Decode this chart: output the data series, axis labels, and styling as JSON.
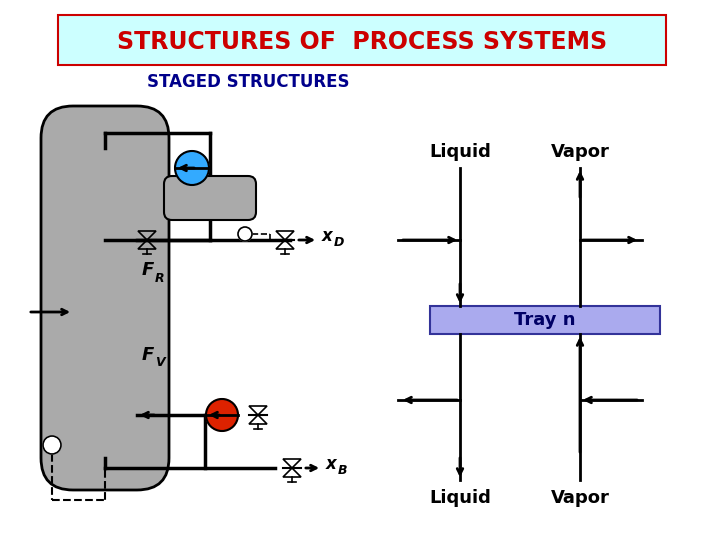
{
  "title": "STRUCTURES OF  PROCESS SYSTEMS",
  "subtitle": "STAGED STRUCTURES",
  "title_color": "#cc0000",
  "title_bg": "#ccffff",
  "title_border": "#cc0000",
  "subtitle_color": "#00008b",
  "tray_box_color": "#aaaaee",
  "tray_box_edge": "#333399",
  "tray_label": "Tray n",
  "liquid_label": "Liquid",
  "vapor_label": "Vapor",
  "xD_label": "x",
  "xD_sub": "D",
  "xB_label": "x",
  "xB_sub": "B",
  "FR_label": "F",
  "FR_sub": "R",
  "FV_label": "F",
  "FV_sub": "V",
  "column_color": "#aaaaaa",
  "condenser_color": "#aaaaaa",
  "pump_blue": "#33aaff",
  "pump_red": "#dd2200",
  "bg_color": "#ffffff"
}
